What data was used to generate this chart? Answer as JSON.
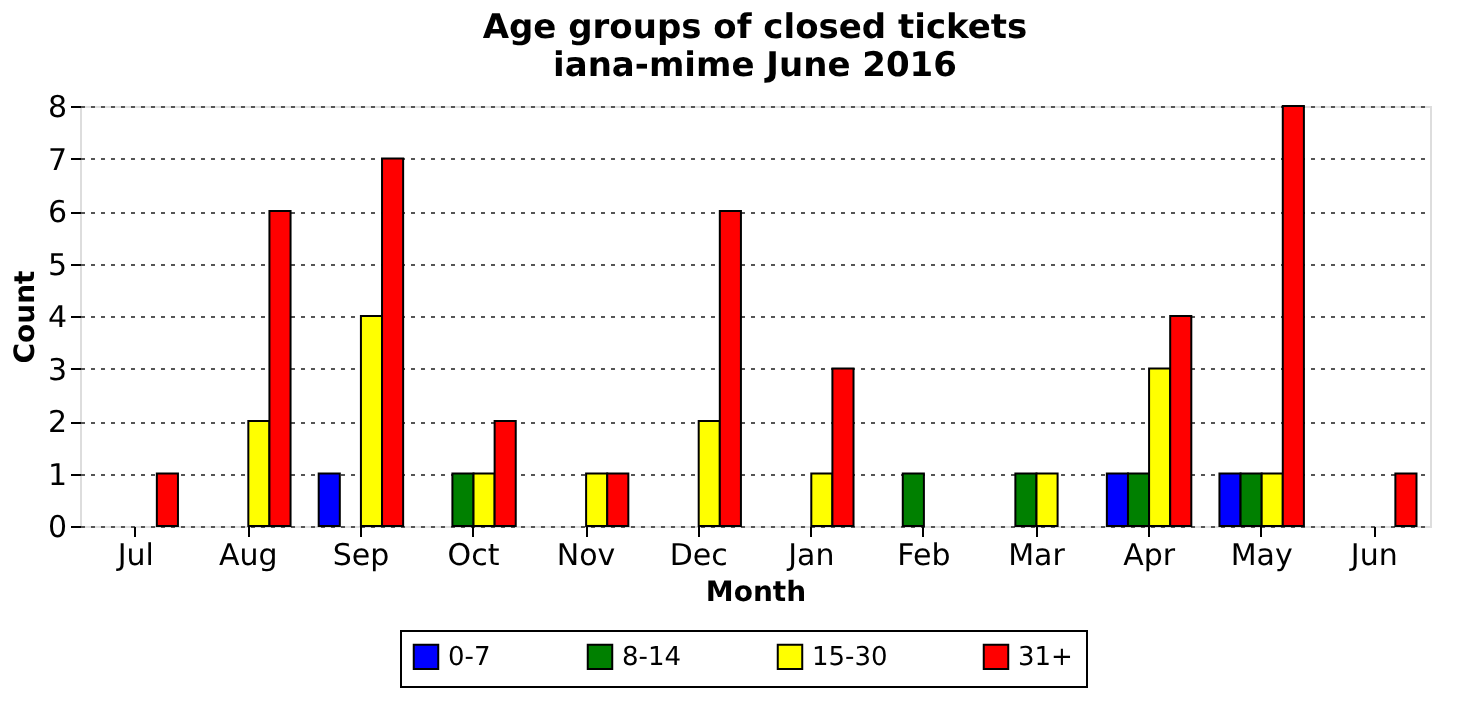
{
  "chart_data": {
    "type": "bar",
    "title": "Age groups of closed tickets",
    "subtitle": "iana-mime June 2016",
    "xlabel": "Month",
    "ylabel": "Count",
    "categories": [
      "Jul",
      "Aug",
      "Sep",
      "Oct",
      "Nov",
      "Dec",
      "Jan",
      "Feb",
      "Mar",
      "Apr",
      "May",
      "Jun"
    ],
    "series": [
      {
        "name": "0-7",
        "color": "#0000ff",
        "values": [
          0,
          0,
          1,
          0,
          0,
          0,
          0,
          0,
          0,
          1,
          1,
          0
        ]
      },
      {
        "name": "8-14",
        "color": "#008000",
        "values": [
          0,
          0,
          0,
          1,
          0,
          0,
          0,
          1,
          1,
          1,
          1,
          0
        ]
      },
      {
        "name": "15-30",
        "color": "#ffff00",
        "values": [
          0,
          2,
          4,
          1,
          1,
          2,
          1,
          0,
          1,
          3,
          1,
          0
        ]
      },
      {
        "name": "31+",
        "color": "#ff0000",
        "values": [
          1,
          6,
          7,
          2,
          1,
          6,
          3,
          0,
          0,
          4,
          8,
          1
        ]
      }
    ],
    "ylim": [
      0,
      8
    ],
    "yticks": [
      0,
      1,
      2,
      3,
      4,
      5,
      6,
      7,
      8
    ],
    "grid": "y",
    "legend": "bottom"
  }
}
